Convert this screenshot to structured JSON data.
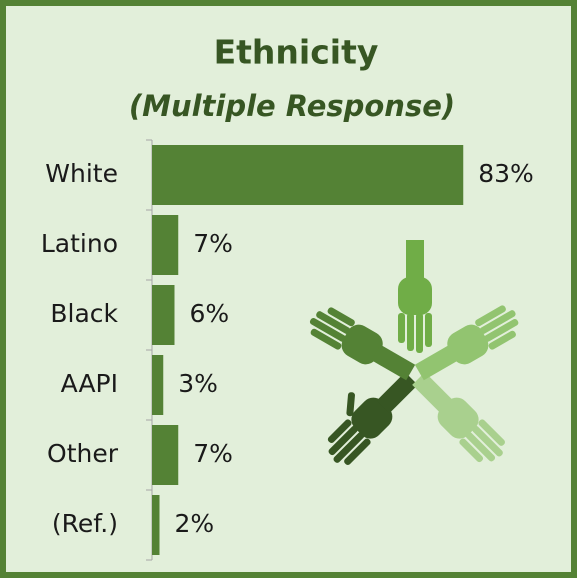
{
  "chart_data": {
    "type": "bar",
    "orientation": "horizontal",
    "title": "Ethnicity",
    "subtitle": "(Multiple Response)",
    "categories": [
      "White",
      "Latino",
      "Black",
      "AAPI",
      "Other",
      "(Ref.)"
    ],
    "values": [
      83,
      7,
      6,
      3,
      7,
      2
    ],
    "value_labels": [
      "83%",
      "7%",
      "6%",
      "3%",
      "7%",
      "2%"
    ],
    "color": "#548235"
  }
}
